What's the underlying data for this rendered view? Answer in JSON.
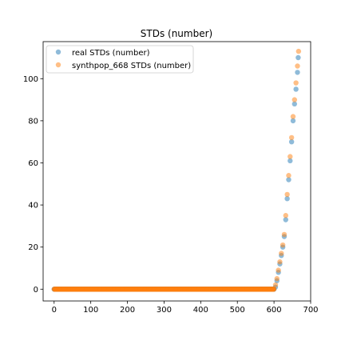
{
  "chart_data": {
    "type": "scatter",
    "title": "STDs (number)",
    "xlabel": "",
    "ylabel": "",
    "xlim": [
      -30,
      700
    ],
    "ylim": [
      -5.6,
      117.6
    ],
    "xticks": [
      0,
      100,
      200,
      300,
      400,
      500,
      600,
      700
    ],
    "yticks": [
      0,
      20,
      40,
      60,
      80,
      100
    ],
    "grid": false,
    "legend_position": "top-left",
    "series": [
      {
        "name": "real STDs (number)",
        "color": "#1f77b4",
        "zero_until_index": 599,
        "x": [
          600,
          604,
          608,
          612,
          616,
          620,
          624,
          628,
          632,
          636,
          640,
          644,
          648,
          652,
          656,
          660,
          664,
          666
        ],
        "y": [
          0,
          1,
          4,
          8,
          12,
          16,
          20,
          25,
          33,
          43,
          52,
          61,
          70,
          80,
          88,
          95,
          103,
          110
        ]
      },
      {
        "name": "synthpop_668 STDs (number)",
        "color": "#ff7f0e",
        "zero_until_index": 599,
        "x": [
          600,
          604,
          608,
          612,
          616,
          620,
          624,
          628,
          632,
          636,
          640,
          644,
          648,
          652,
          656,
          660,
          664,
          667
        ],
        "y": [
          0,
          2,
          5,
          9,
          13,
          17,
          21,
          26,
          35,
          45,
          54,
          63,
          72,
          82,
          90,
          98,
          106,
          113
        ]
      }
    ]
  }
}
